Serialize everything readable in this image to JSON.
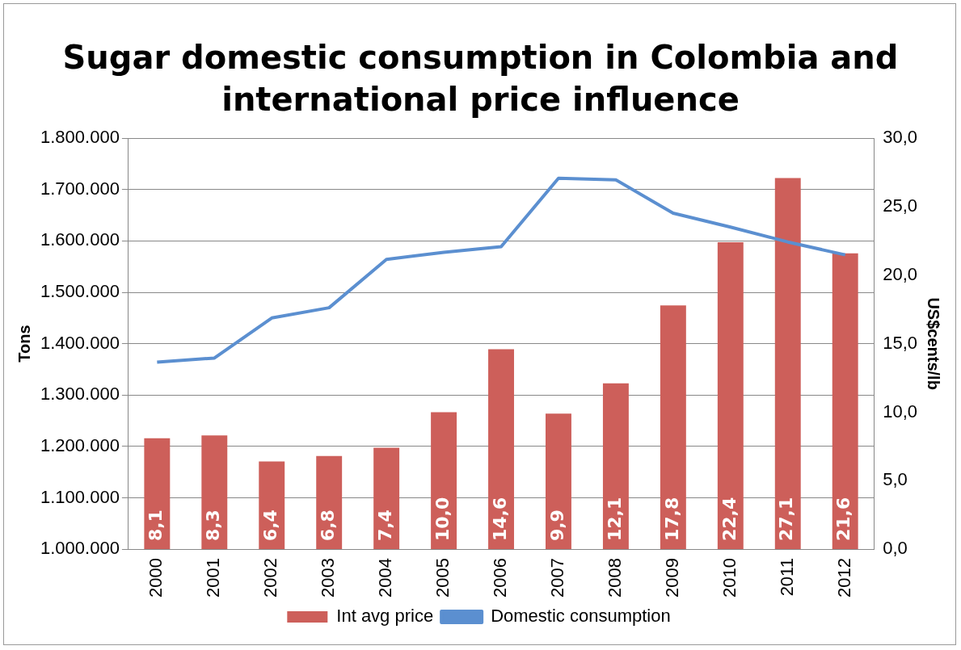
{
  "chart_data": {
    "type": "bar",
    "title": "Sugar domestic consumption in Colombia and international price influence",
    "ylabel": "Tons",
    "y2label": "US$cents/lb",
    "categories": [
      "2000",
      "2001",
      "2002",
      "2003",
      "2004",
      "2005",
      "2006",
      "2007",
      "2008",
      "2009",
      "2010",
      "2011",
      "2012"
    ],
    "series": [
      {
        "name": "Int avg price",
        "axis": "y2",
        "color": "#cd5f5a",
        "values": [
          8.1,
          8.3,
          6.4,
          6.8,
          7.4,
          10.0,
          14.6,
          9.9,
          12.1,
          17.8,
          22.4,
          27.1,
          21.6
        ],
        "value_labels": [
          "8,1",
          "8,3",
          "6,4",
          "6,8",
          "7,4",
          "10,0",
          "14,6",
          "9,9",
          "12,1",
          "17,8",
          "22,4",
          "27,1",
          "21,6"
        ]
      },
      {
        "name": "Domestic consumption",
        "type": "line",
        "axis": "y",
        "color": "#5b8fd0",
        "values": [
          1364000,
          1372000,
          1450000,
          1470000,
          1564000,
          1578000,
          1589000,
          1722000,
          1719000,
          1654000,
          1627000,
          1598000,
          1573000
        ]
      }
    ],
    "ylim": [
      1000000,
      1800000
    ],
    "yticks": [
      {
        "value": 1000000,
        "label": "1.000.000"
      },
      {
        "value": 1100000,
        "label": "1.100.000"
      },
      {
        "value": 1200000,
        "label": "1.200.000"
      },
      {
        "value": 1300000,
        "label": "1.300.000"
      },
      {
        "value": 1400000,
        "label": "1.400.000"
      },
      {
        "value": 1500000,
        "label": "1.500.000"
      },
      {
        "value": 1600000,
        "label": "1.600.000"
      },
      {
        "value": 1700000,
        "label": "1.700.000"
      },
      {
        "value": 1800000,
        "label": "1.800.000"
      }
    ],
    "y2lim": [
      0,
      30
    ],
    "y2ticks": [
      {
        "value": 0,
        "label": "0,0"
      },
      {
        "value": 5,
        "label": "5,0"
      },
      {
        "value": 10,
        "label": "10,0"
      },
      {
        "value": 15,
        "label": "15,0"
      },
      {
        "value": 20,
        "label": "20,0"
      },
      {
        "value": 25,
        "label": "25,0"
      },
      {
        "value": 30,
        "label": "30,0"
      }
    ],
    "grid": "y",
    "legend": "bottom",
    "marker": "none",
    "line_style": "solid"
  }
}
